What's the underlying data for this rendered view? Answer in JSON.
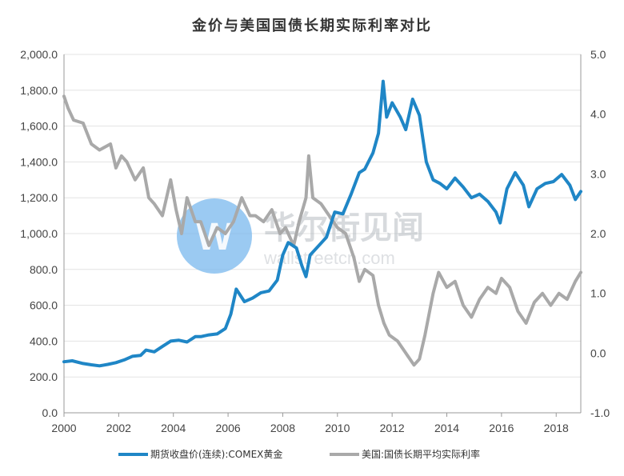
{
  "chart_data": {
    "type": "line",
    "title": "金价与美国国债长期实际利率对比",
    "x_ticks": [
      "2000",
      "2002",
      "2004",
      "2006",
      "2008",
      "2010",
      "2012",
      "2014",
      "2016",
      "2018"
    ],
    "xlim": [
      2000,
      2018.9
    ],
    "y_left": {
      "lim": [
        0,
        2000
      ],
      "ticks": [
        "0.0",
        "200.0",
        "400.0",
        "600.0",
        "800.0",
        "1,000.0",
        "1,200.0",
        "1,400.0",
        "1,600.0",
        "1,800.0",
        "2,000.0"
      ]
    },
    "y_right": {
      "lim": [
        -1,
        5
      ],
      "ticks": [
        "-1.0",
        "0.0",
        "1.0",
        "2.0",
        "3.0",
        "4.0",
        "5.0"
      ]
    },
    "grid": "horizontal",
    "legend_position": "bottom",
    "series": [
      {
        "name": "期货收盘价(连续):COMEX黄金",
        "axis": "left",
        "color": "#1f86c6",
        "x": [
          2000.0,
          2000.3,
          2000.7,
          2001.0,
          2001.3,
          2001.6,
          2001.9,
          2002.2,
          2002.5,
          2002.8,
          2003.0,
          2003.3,
          2003.6,
          2003.9,
          2004.2,
          2004.5,
          2004.8,
          2005.0,
          2005.3,
          2005.6,
          2005.9,
          2006.1,
          2006.3,
          2006.6,
          2006.9,
          2007.2,
          2007.5,
          2007.8,
          2008.0,
          2008.2,
          2008.5,
          2008.7,
          2008.85,
          2009.0,
          2009.3,
          2009.6,
          2009.9,
          2010.2,
          2010.5,
          2010.8,
          2011.0,
          2011.3,
          2011.5,
          2011.67,
          2011.8,
          2012.0,
          2012.3,
          2012.5,
          2012.75,
          2013.0,
          2013.25,
          2013.5,
          2013.75,
          2014.0,
          2014.3,
          2014.6,
          2014.9,
          2015.2,
          2015.5,
          2015.8,
          2015.95,
          2016.2,
          2016.5,
          2016.8,
          2017.0,
          2017.3,
          2017.6,
          2017.9,
          2018.2,
          2018.5,
          2018.7,
          2018.9
        ],
        "values": [
          285,
          290,
          275,
          268,
          262,
          270,
          280,
          295,
          315,
          320,
          350,
          340,
          370,
          400,
          405,
          395,
          425,
          425,
          435,
          440,
          470,
          550,
          690,
          620,
          640,
          670,
          680,
          740,
          880,
          950,
          920,
          820,
          760,
          880,
          930,
          980,
          1120,
          1110,
          1220,
          1340,
          1360,
          1450,
          1560,
          1850,
          1650,
          1730,
          1650,
          1580,
          1750,
          1660,
          1400,
          1300,
          1280,
          1250,
          1310,
          1260,
          1200,
          1220,
          1180,
          1120,
          1060,
          1250,
          1340,
          1270,
          1150,
          1250,
          1280,
          1290,
          1330,
          1270,
          1190,
          1235
        ]
      },
      {
        "name": "美国:国债长期平均实际利率",
        "axis": "right",
        "color": "#a9a9a9",
        "x": [
          2000.0,
          2000.15,
          2000.35,
          2000.7,
          2001.0,
          2001.3,
          2001.7,
          2001.9,
          2002.1,
          2002.3,
          2002.6,
          2002.9,
          2003.1,
          2003.3,
          2003.6,
          2003.9,
          2004.1,
          2004.3,
          2004.5,
          2004.8,
          2005.0,
          2005.3,
          2005.6,
          2005.9,
          2006.2,
          2006.5,
          2006.8,
          2007.0,
          2007.3,
          2007.6,
          2007.9,
          2008.1,
          2008.4,
          2008.6,
          2008.85,
          2008.95,
          2009.1,
          2009.4,
          2009.7,
          2010.0,
          2010.3,
          2010.6,
          2010.8,
          2011.0,
          2011.3,
          2011.5,
          2011.7,
          2011.9,
          2012.2,
          2012.5,
          2012.8,
          2013.0,
          2013.2,
          2013.5,
          2013.7,
          2014.0,
          2014.3,
          2014.6,
          2014.9,
          2015.2,
          2015.5,
          2015.8,
          2016.0,
          2016.3,
          2016.6,
          2016.9,
          2017.2,
          2017.5,
          2017.8,
          2018.1,
          2018.4,
          2018.7,
          2018.9
        ],
        "values": [
          4.3,
          4.1,
          3.9,
          3.85,
          3.5,
          3.4,
          3.5,
          3.1,
          3.3,
          3.2,
          2.9,
          3.1,
          2.6,
          2.5,
          2.3,
          2.9,
          2.4,
          2.0,
          2.6,
          2.2,
          2.2,
          1.8,
          2.1,
          2.0,
          2.2,
          2.6,
          2.3,
          2.3,
          2.2,
          2.4,
          2.0,
          2.1,
          1.8,
          2.2,
          2.6,
          3.3,
          2.6,
          2.5,
          2.3,
          2.1,
          2.0,
          1.6,
          1.2,
          1.4,
          1.3,
          0.8,
          0.5,
          0.3,
          0.2,
          0.0,
          -0.2,
          -0.1,
          0.3,
          1.0,
          1.35,
          1.1,
          1.2,
          0.8,
          0.6,
          0.9,
          1.1,
          1.0,
          1.25,
          1.1,
          0.7,
          0.5,
          0.85,
          1.0,
          0.8,
          1.0,
          0.9,
          1.2,
          1.35
        ]
      }
    ]
  },
  "watermark": {
    "brand_text": "华尔街见闻",
    "url_text": "wallstreetcn.com",
    "logo_letter": "W",
    "logo_color": "#7ab8ee"
  }
}
